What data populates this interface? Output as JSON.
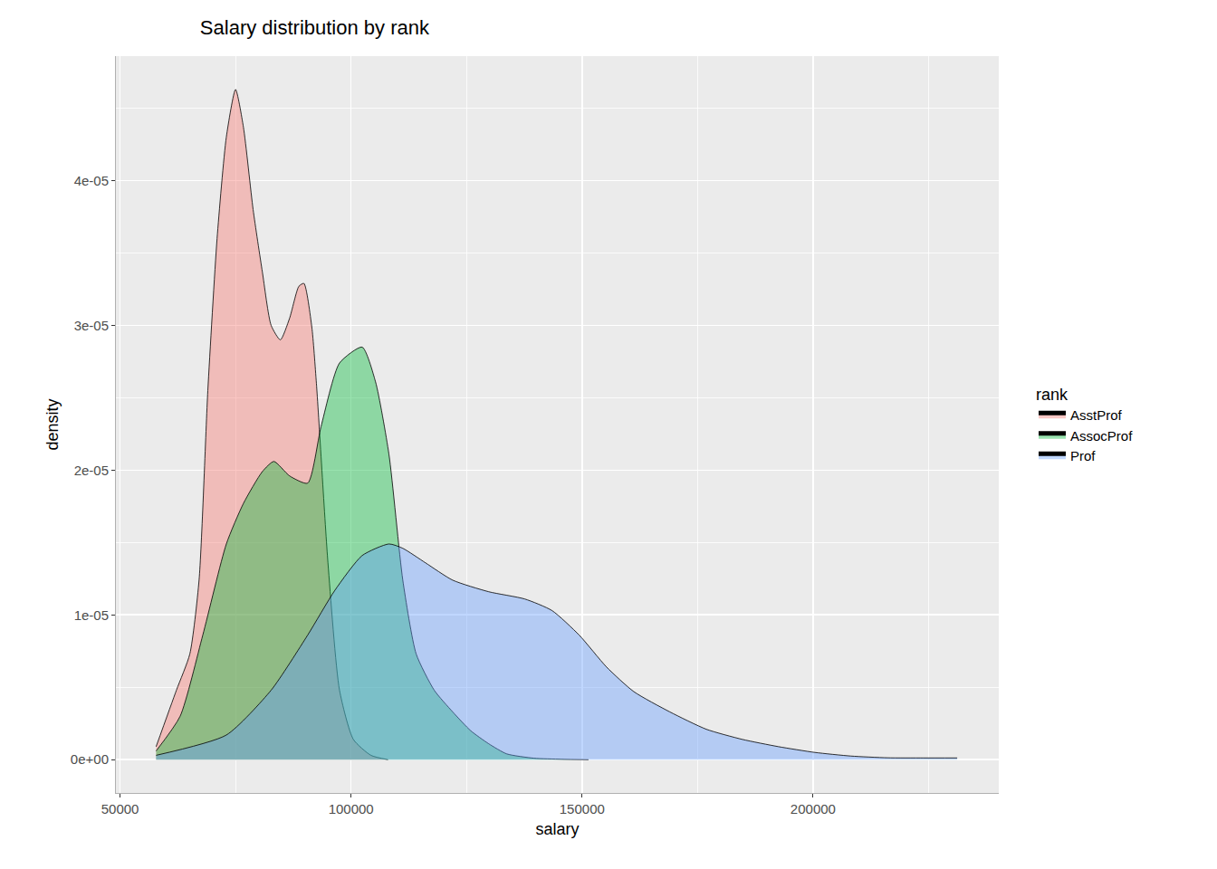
{
  "chart_data": {
    "type": "density",
    "title": "Salary distribution by rank",
    "x_label": "salary",
    "y_label": "density",
    "legend_title": "rank",
    "legend": "right",
    "grid": true,
    "xlim": [
      49100,
      240200
    ],
    "ylim": [
      -2.3e-06,
      4.86e-05
    ],
    "xticks": [
      50000,
      100000,
      150000,
      200000
    ],
    "yticks": [
      {
        "value": 0,
        "label": "0e+00"
      },
      {
        "value": 1e-05,
        "label": "1e-05"
      },
      {
        "value": 2e-05,
        "label": "2e-05"
      },
      {
        "value": 3e-05,
        "label": "3e-05"
      },
      {
        "value": 4e-05,
        "label": "4e-05"
      }
    ],
    "series": [
      {
        "name": "AsstProf",
        "color": "#F8766D",
        "x": [
          57800,
          62200,
          65100,
          67100,
          69000,
          71000,
          73000,
          75000,
          76700,
          78800,
          80800,
          82700,
          84700,
          86700,
          88700,
          89800,
          91500,
          92500,
          95000,
          97500,
          100500,
          104300,
          108000
        ],
        "values": [
          9e-07,
          4.8e-06,
          7.3e-06,
          1.24e-05,
          2.55e-05,
          3.6e-05,
          4.3e-05,
          4.63e-05,
          4.37e-05,
          3.8e-05,
          3.37e-05,
          3e-05,
          2.9e-05,
          3.05e-05,
          3.27e-05,
          3.29e-05,
          2.99e-05,
          2.6e-05,
          1.36e-05,
          4.8e-06,
          1.4e-06,
          3e-07,
          0
        ]
      },
      {
        "name": "AssocProf",
        "color": "#00BA38",
        "x": [
          57800,
          63000,
          67900,
          73000,
          76700,
          80800,
          83300,
          86700,
          90600,
          93500,
          97500,
          102400,
          105300,
          108200,
          111200,
          114100,
          118000,
          122000,
          125900,
          129800,
          133700,
          139600,
          145500,
          151400
        ],
        "values": [
          6e-07,
          3e-06,
          8.6e-06,
          1.49e-05,
          1.77e-05,
          1.99e-05,
          2.06e-05,
          1.96e-05,
          1.91e-05,
          2.3e-05,
          2.74e-05,
          2.85e-05,
          2.61e-05,
          2.11e-05,
          1.24e-05,
          7.3e-06,
          4.8e-06,
          3.3e-06,
          2e-06,
          1.1e-06,
          4e-07,
          1e-07,
          3e-08,
          0
        ]
      },
      {
        "name": "Prof",
        "color": "#619CFF",
        "x": [
          57800,
          73000,
          82700,
          90600,
          96500,
          102400,
          108200,
          111200,
          116100,
          122000,
          129800,
          137600,
          143500,
          149400,
          155300,
          161200,
          169000,
          176900,
          184700,
          192500,
          200400,
          208200,
          216100,
          223900,
          231200
        ],
        "values": [
          3e-07,
          1.7e-06,
          4.8e-06,
          8.6e-06,
          1.17e-05,
          1.41e-05,
          1.49e-05,
          1.46e-05,
          1.36e-05,
          1.24e-05,
          1.16e-05,
          1.11e-05,
          1.03e-05,
          8.6e-06,
          6.4e-06,
          4.7e-06,
          3.3e-06,
          2.1e-06,
          1.4e-06,
          9e-07,
          5e-07,
          2.5e-07,
          1.3e-07,
          1.2e-07,
          1.2e-07
        ]
      }
    ]
  }
}
